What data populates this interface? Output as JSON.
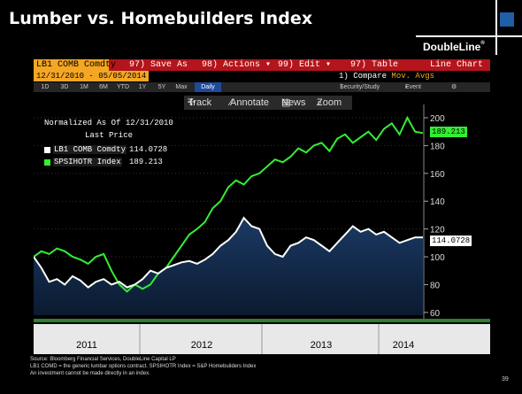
{
  "slide": {
    "title": "Lumber vs. Homebuilders Index",
    "page_number": "39"
  },
  "logo": {
    "text": "DoubleLine",
    "registered": "®",
    "accent": "#1e5fa8"
  },
  "toolbar_top": {
    "ticker": "LB1 COMB Comdty",
    "save_as": "97) Save As",
    "actions": "98) Actions",
    "edit": "99) Edit",
    "table": "97) Table",
    "chart_type": "Line Chart"
  },
  "date_bar": {
    "range": "12/31/2010 - 05/05/2014",
    "compare_prefix": "1) Compare",
    "compare_value": "Mov. Avgs"
  },
  "period_bar": {
    "periods": [
      "1D",
      "3D",
      "1M",
      "6M",
      "YTD",
      "1Y",
      "5Y",
      "Max"
    ],
    "active": "Daily",
    "security": "Security/Study",
    "event": "Event"
  },
  "chart_toolbar": {
    "track": "Track",
    "annotate": "Annotate",
    "news": "News",
    "zoom": "Zoom"
  },
  "legend": {
    "title": "Normalized As Of 12/31/2010",
    "subtitle": "Last Price",
    "rows": [
      {
        "name": "LB1 COMB Comdty",
        "value": "114.0728",
        "color": "#ffffff"
      },
      {
        "name": "SPSIHOTR Index",
        "value": "189.213",
        "color": "#33ee33"
      }
    ]
  },
  "chart_data": {
    "type": "line",
    "x_labels": [
      "2011",
      "2012",
      "2013",
      "2014"
    ],
    "y_ticks": [
      60,
      80,
      100,
      120,
      140,
      160,
      180,
      200
    ],
    "ylim": [
      58,
      207
    ],
    "last_values": {
      "green": "189.213",
      "white": "114.0728"
    },
    "series": [
      {
        "name": "SPSIHOTR Index",
        "color": "#33ee33",
        "x": [
          0,
          0.02,
          0.04,
          0.06,
          0.08,
          0.1,
          0.12,
          0.14,
          0.16,
          0.18,
          0.2,
          0.22,
          0.24,
          0.26,
          0.28,
          0.3,
          0.32,
          0.34,
          0.36,
          0.38,
          0.4,
          0.42,
          0.44,
          0.46,
          0.48,
          0.5,
          0.52,
          0.54,
          0.56,
          0.58,
          0.6,
          0.62,
          0.64,
          0.66,
          0.68,
          0.7,
          0.72,
          0.74,
          0.76,
          0.78,
          0.8,
          0.82,
          0.84,
          0.86,
          0.88,
          0.9,
          0.92,
          0.94,
          0.96,
          0.98,
          1.0
        ],
        "values": [
          100,
          104,
          102,
          106,
          104,
          100,
          98,
          95,
          100,
          102,
          90,
          80,
          75,
          80,
          77,
          80,
          88,
          92,
          100,
          108,
          116,
          120,
          125,
          135,
          140,
          150,
          155,
          152,
          158,
          160,
          165,
          170,
          168,
          172,
          178,
          175,
          180,
          182,
          176,
          185,
          188,
          182,
          186,
          190,
          184,
          192,
          196,
          188,
          200,
          190,
          189
        ]
      },
      {
        "name": "LB1 COMB Comdty",
        "color": "#ffffff",
        "x": [
          0,
          0.02,
          0.04,
          0.06,
          0.08,
          0.1,
          0.12,
          0.14,
          0.16,
          0.18,
          0.2,
          0.22,
          0.24,
          0.26,
          0.28,
          0.3,
          0.32,
          0.34,
          0.36,
          0.38,
          0.4,
          0.42,
          0.44,
          0.46,
          0.48,
          0.5,
          0.52,
          0.54,
          0.56,
          0.58,
          0.6,
          0.62,
          0.64,
          0.66,
          0.68,
          0.7,
          0.72,
          0.74,
          0.76,
          0.78,
          0.8,
          0.82,
          0.84,
          0.86,
          0.88,
          0.9,
          0.92,
          0.94,
          0.96,
          0.98,
          1.0
        ],
        "values": [
          100,
          92,
          82,
          84,
          80,
          86,
          83,
          78,
          82,
          84,
          80,
          82,
          78,
          80,
          84,
          90,
          88,
          92,
          94,
          96,
          97,
          95,
          98,
          102,
          108,
          112,
          118,
          128,
          122,
          120,
          108,
          102,
          100,
          108,
          110,
          114,
          112,
          108,
          104,
          110,
          116,
          122,
          118,
          120,
          116,
          118,
          114,
          110,
          112,
          114,
          114
        ]
      }
    ]
  },
  "footer": {
    "source": "Source: Bloomberg Financial Services, DoubleLine Capital LP",
    "note": "LB1 COMD = the generic lumbar options contract. SPSIHOTR Index = S&P Homebuilders Index",
    "disclaimer": "An investment cannot be made directly in an index."
  }
}
